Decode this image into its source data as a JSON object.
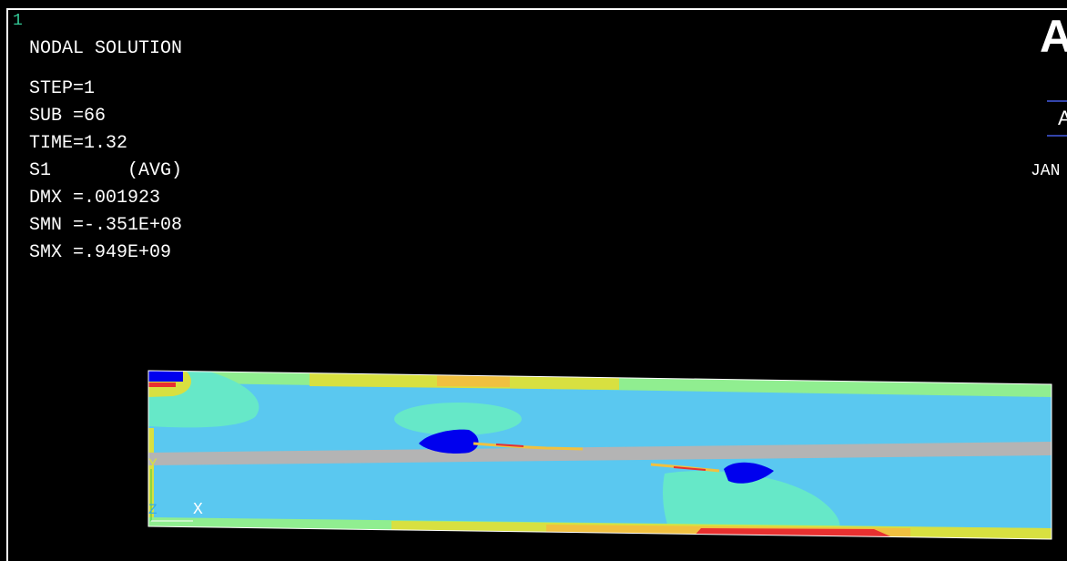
{
  "window": {
    "number": "1"
  },
  "plot": {
    "title": "NODAL SOLUTION",
    "stats": [
      "STEP=1",
      "SUB =66",
      "TIME=1.32",
      "S1       (AVG)",
      "DMX =.001923",
      "SMN =-.351E+08",
      "SMX =.949E+09"
    ]
  },
  "brand": {
    "letter": "A",
    "badge": "A"
  },
  "date": {
    "text": "JAN"
  },
  "triad": {
    "y_label": "Y",
    "z_label": "Z",
    "x_label": "X"
  },
  "colors": {
    "background": "#000000",
    "contour_blue": "#0000ee",
    "contour_cyan": "#5ac8f0",
    "contour_aqua": "#66e8c8",
    "contour_green": "#90ee90",
    "contour_yellow": "#d8e040",
    "contour_orange": "#f0c040",
    "contour_red": "#e83030",
    "contour_gray": "#b4b4b4",
    "frame": "#ffffff"
  }
}
